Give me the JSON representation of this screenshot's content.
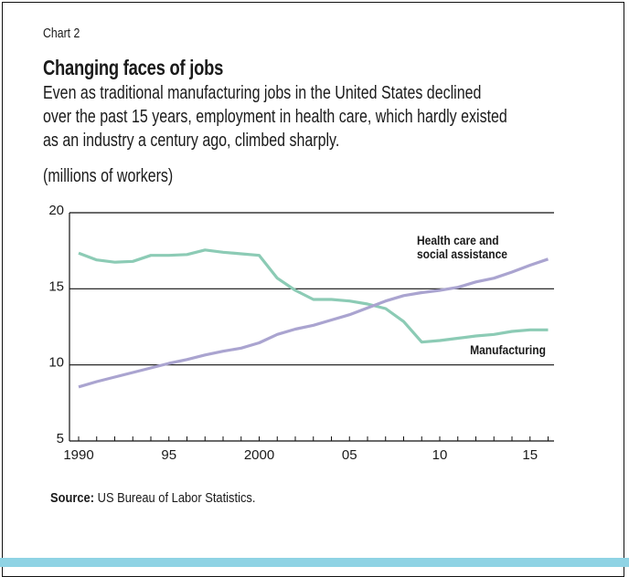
{
  "header": {
    "chart_number": "Chart 2",
    "title": "Changing faces of jobs",
    "subtitle_lines": [
      "Even as traditional manufacturing jobs in the United States declined",
      "over the past 15 years, employment in health care, which hardly existed",
      "as an industry a century ago, climbed sharply."
    ],
    "units": "(millions of workers)"
  },
  "source": {
    "label": "Source:",
    "text": " US Bureau of Labor Statistics."
  },
  "colors": {
    "manufacturing": "#8ccbb5",
    "health_care": "#aaa4d0",
    "bottom_bar": "#8fd3e4",
    "gridline": "#111111"
  },
  "chart_data": {
    "type": "line",
    "title": "Changing faces of jobs",
    "xlabel": "",
    "ylabel": "(millions of workers)",
    "xlim": [
      1989.5,
      2016.5
    ],
    "ylim": [
      5,
      20
    ],
    "yticks": [
      5,
      10,
      15,
      20
    ],
    "ytick_labels": [
      "5",
      "10",
      "15",
      "20"
    ],
    "xticks": [
      1990,
      1995,
      2000,
      2005,
      2010,
      2015
    ],
    "xtick_labels": [
      "1990",
      "95",
      "2000",
      "05",
      "10",
      "15"
    ],
    "minor_xticks_every_year": true,
    "grid": "horizontal",
    "legend": "inline labels",
    "x": [
      1990,
      1991,
      1992,
      1993,
      1994,
      1995,
      1996,
      1997,
      1998,
      1999,
      2000,
      2001,
      2002,
      2003,
      2004,
      2005,
      2006,
      2007,
      2008,
      2009,
      2010,
      2011,
      2012,
      2013,
      2014,
      2015,
      2016
    ],
    "series": [
      {
        "name": "Manufacturing",
        "label_lines": [
          "Manufacturing"
        ],
        "values": [
          17.35,
          16.9,
          16.75,
          16.8,
          17.2,
          17.2,
          17.25,
          17.55,
          17.4,
          17.3,
          17.2,
          15.7,
          14.9,
          14.3,
          14.3,
          14.2,
          14.0,
          13.7,
          12.85,
          11.5,
          11.6,
          11.75,
          11.9,
          12.0,
          12.2,
          12.3,
          12.3
        ]
      },
      {
        "name": "Health care and social assistance",
        "label_lines": [
          "Health care and",
          "social assistance"
        ],
        "values": [
          8.55,
          8.9,
          9.2,
          9.5,
          9.8,
          10.1,
          10.35,
          10.65,
          10.9,
          11.1,
          11.45,
          12.0,
          12.35,
          12.6,
          12.95,
          13.3,
          13.75,
          14.2,
          14.55,
          14.75,
          14.9,
          15.1,
          15.45,
          15.7,
          16.1,
          16.55,
          16.95
        ]
      }
    ]
  }
}
